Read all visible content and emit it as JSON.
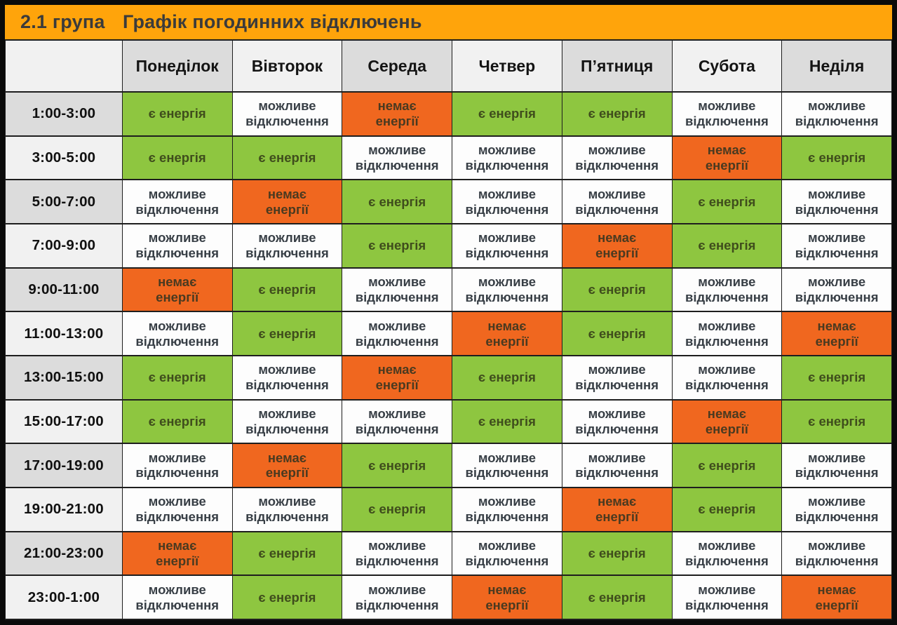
{
  "header": {
    "group_label": "2.1 група",
    "title": "Графік погодинних відключень"
  },
  "chart_data": {
    "type": "table",
    "title": "Графік погодинних відключень",
    "group": "2.1 група",
    "columns": [
      "Понеділок",
      "Вівторок",
      "Середа",
      "Четвер",
      "П’ятниця",
      "Субота",
      "Неділя"
    ],
    "status_labels": {
      "on": "є енергія",
      "maybe": "можливе\nвідключення",
      "off": "немає\nенергії"
    },
    "status_legend": {
      "on": "є енергія (green)",
      "maybe": "можливе відключення (white)",
      "off": "немає енергії (orange)"
    },
    "rows": [
      {
        "time": "1:00-3:00",
        "cells": [
          "on",
          "maybe",
          "off",
          "on",
          "on",
          "maybe",
          "maybe"
        ]
      },
      {
        "time": "3:00-5:00",
        "cells": [
          "on",
          "on",
          "maybe",
          "maybe",
          "maybe",
          "off",
          "on"
        ]
      },
      {
        "time": "5:00-7:00",
        "cells": [
          "maybe",
          "off",
          "on",
          "maybe",
          "maybe",
          "on",
          "maybe"
        ]
      },
      {
        "time": "7:00-9:00",
        "cells": [
          "maybe",
          "maybe",
          "on",
          "maybe",
          "off",
          "on",
          "maybe"
        ]
      },
      {
        "time": "9:00-11:00",
        "cells": [
          "off",
          "on",
          "maybe",
          "maybe",
          "on",
          "maybe",
          "maybe"
        ]
      },
      {
        "time": "11:00-13:00",
        "cells": [
          "maybe",
          "on",
          "maybe",
          "off",
          "on",
          "maybe",
          "off"
        ]
      },
      {
        "time": "13:00-15:00",
        "cells": [
          "on",
          "maybe",
          "off",
          "on",
          "maybe",
          "maybe",
          "on"
        ]
      },
      {
        "time": "15:00-17:00",
        "cells": [
          "on",
          "maybe",
          "maybe",
          "on",
          "maybe",
          "off",
          "on"
        ]
      },
      {
        "time": "17:00-19:00",
        "cells": [
          "maybe",
          "off",
          "on",
          "maybe",
          "maybe",
          "on",
          "maybe"
        ]
      },
      {
        "time": "19:00-21:00",
        "cells": [
          "maybe",
          "maybe",
          "on",
          "maybe",
          "off",
          "on",
          "maybe"
        ]
      },
      {
        "time": "21:00-23:00",
        "cells": [
          "off",
          "on",
          "maybe",
          "maybe",
          "on",
          "maybe",
          "maybe"
        ]
      },
      {
        "time": "23:00-1:00",
        "cells": [
          "maybe",
          "on",
          "maybe",
          "off",
          "on",
          "maybe",
          "off"
        ]
      }
    ]
  },
  "colors": {
    "header_bar": "#FFA40B",
    "energy_on": "#8EC640",
    "energy_off": "#F0671F",
    "possible_outage": "#FDFDFD",
    "header_shade_dark": "#DCDCDC",
    "header_shade_light": "#F1F1F1",
    "frame": "#0A0A0A"
  }
}
